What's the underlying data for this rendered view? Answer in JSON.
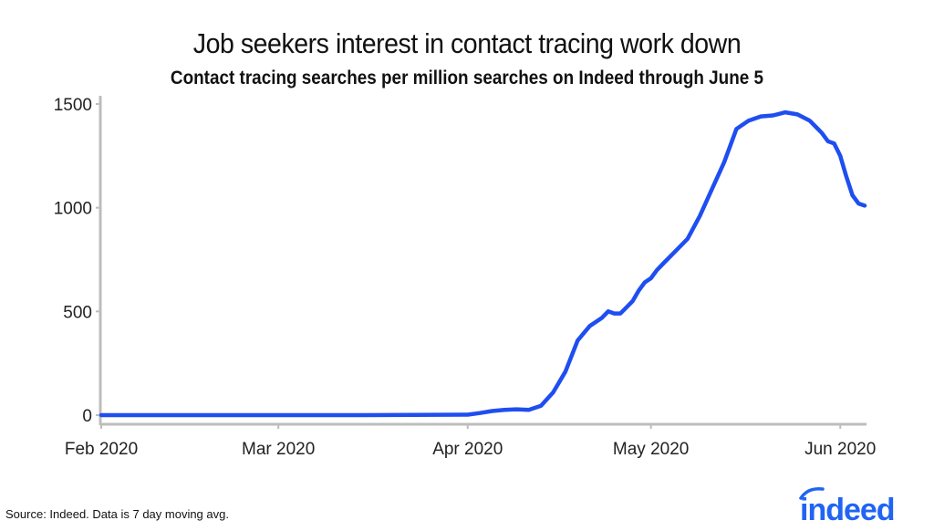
{
  "header": {
    "title": "Job seekers interest in contact tracing work down",
    "subtitle": "Contact tracing searches per million searches on Indeed through June 5"
  },
  "footer": {
    "source": "Source: Indeed. Data is 7 day moving avg.",
    "logo_text": "indeed",
    "logo_color": "#2164f3"
  },
  "colors": {
    "line": "#1f4ef0",
    "axis": "#bdbdbd",
    "text": "#111111"
  },
  "chart_data": {
    "type": "line",
    "title": "Job seekers interest in contact tracing work down",
    "subtitle": "Contact tracing searches per million searches on Indeed through June 5",
    "xlabel": "",
    "ylabel": "",
    "ylim": [
      0,
      1500
    ],
    "yticks": [
      0,
      500,
      1000,
      1500
    ],
    "ytick_labels": [
      "0",
      "500",
      "1000",
      "1500"
    ],
    "xtick_labels": [
      "Feb 2020",
      "Mar 2020",
      "Apr 2020",
      "May 2020",
      "Jun 2020"
    ],
    "xlim": [
      "2020-02-01",
      "2020-06-05"
    ],
    "grid": false,
    "legend": null,
    "series": [
      {
        "name": "Contact tracing searches per million searches",
        "x": [
          "2020-02-01",
          "2020-02-15",
          "2020-03-01",
          "2020-03-15",
          "2020-04-01",
          "2020-04-03",
          "2020-04-05",
          "2020-04-07",
          "2020-04-09",
          "2020-04-11",
          "2020-04-13",
          "2020-04-15",
          "2020-04-17",
          "2020-04-19",
          "2020-04-21",
          "2020-04-23",
          "2020-04-24",
          "2020-04-25",
          "2020-04-26",
          "2020-04-27",
          "2020-04-28",
          "2020-04-29",
          "2020-04-30",
          "2020-05-01",
          "2020-05-02",
          "2020-05-03",
          "2020-05-05",
          "2020-05-07",
          "2020-05-09",
          "2020-05-11",
          "2020-05-13",
          "2020-05-15",
          "2020-05-17",
          "2020-05-19",
          "2020-05-21",
          "2020-05-23",
          "2020-05-25",
          "2020-05-27",
          "2020-05-28",
          "2020-05-29",
          "2020-05-30",
          "2020-05-31",
          "2020-06-01",
          "2020-06-02",
          "2020-06-03",
          "2020-06-04",
          "2020-06-05"
        ],
        "values": [
          0,
          0,
          0,
          0,
          2,
          10,
          20,
          25,
          28,
          25,
          45,
          110,
          210,
          360,
          430,
          470,
          500,
          490,
          490,
          520,
          550,
          600,
          640,
          660,
          700,
          730,
          790,
          850,
          960,
          1090,
          1220,
          1380,
          1420,
          1440,
          1445,
          1460,
          1450,
          1420,
          1390,
          1360,
          1320,
          1310,
          1250,
          1150,
          1060,
          1020,
          1010
        ]
      }
    ]
  }
}
